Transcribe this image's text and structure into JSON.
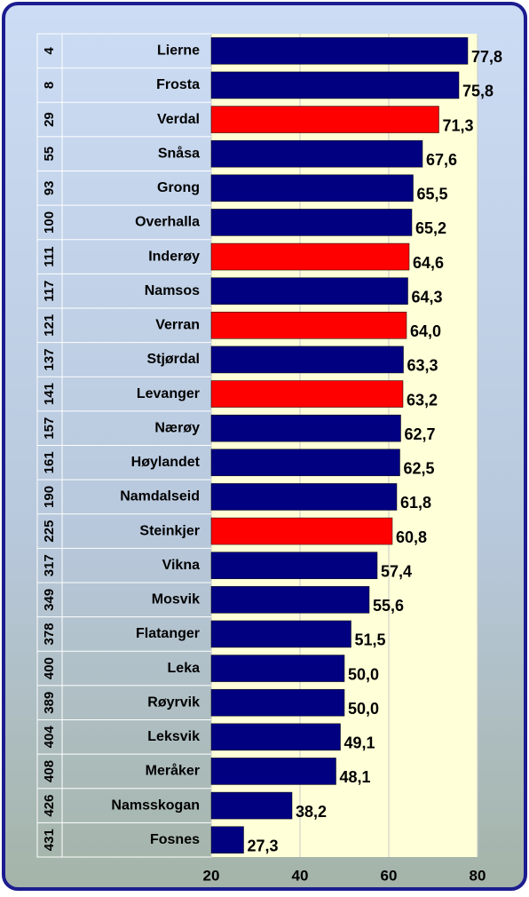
{
  "chart_data": {
    "type": "hbar",
    "ranks": [
      "4",
      "8",
      "29",
      "55",
      "93",
      "100",
      "111",
      "117",
      "121",
      "137",
      "141",
      "157",
      "161",
      "190",
      "225",
      "317",
      "349",
      "378",
      "400",
      "389",
      "404",
      "408",
      "426",
      "431"
    ],
    "categories": [
      "Lierne",
      "Frosta",
      "Verdal",
      "Snåsa",
      "Grong",
      "Overhalla",
      "Inderøy",
      "Namsos",
      "Verran",
      "Stjørdal",
      "Levanger",
      "Nærøy",
      "Høylandet",
      "Namdalseid",
      "Steinkjer",
      "Vikna",
      "Mosvik",
      "Flatanger",
      "Leka",
      "Røyrvik",
      "Leksvik",
      "Meråker",
      "Namsskogan",
      "Fosnes"
    ],
    "values": [
      77.8,
      75.8,
      71.3,
      67.6,
      65.5,
      65.2,
      64.6,
      64.3,
      64.0,
      63.3,
      63.2,
      62.7,
      62.5,
      61.8,
      60.8,
      57.4,
      55.6,
      51.5,
      50.0,
      50.0,
      49.1,
      48.1,
      38.2,
      27.3
    ],
    "value_labels": [
      "77,8",
      "75,8",
      "71,3",
      "67,6",
      "65,5",
      "65,2",
      "64,6",
      "64,3",
      "64,0",
      "63,3",
      "63,2",
      "62,7",
      "62,5",
      "61,8",
      "60,8",
      "57,4",
      "55,6",
      "51,5",
      "50,0",
      "50,0",
      "49,1",
      "48,1",
      "38,2",
      "27,3"
    ],
    "colors": [
      "#000080",
      "#000080",
      "#ff0000",
      "#000080",
      "#000080",
      "#000080",
      "#ff0000",
      "#000080",
      "#ff0000",
      "#000080",
      "#ff0000",
      "#000080",
      "#000080",
      "#000080",
      "#ff0000",
      "#000080",
      "#000080",
      "#000080",
      "#000080",
      "#000080",
      "#000080",
      "#000080",
      "#000080",
      "#000080"
    ],
    "xlim": [
      20,
      80
    ],
    "xticks": [
      20,
      40,
      60,
      80
    ],
    "grid": true
  }
}
